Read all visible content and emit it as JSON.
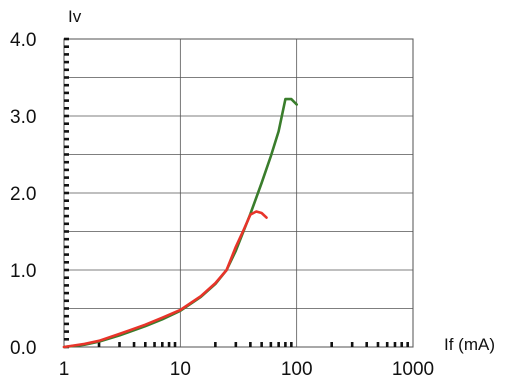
{
  "chart_data": {
    "type": "line",
    "title": "",
    "ylabel": "Iv",
    "xlabel": "If (mA)",
    "xscale": "log",
    "xlim": [
      1,
      1000
    ],
    "ylim": [
      0,
      4.0
    ],
    "grid": true,
    "x_ticks": [
      1,
      10,
      100,
      1000
    ],
    "x_tick_labels": [
      "1",
      "10",
      "100",
      "1000"
    ],
    "y_ticks": [
      0,
      1,
      2,
      3,
      4
    ],
    "y_tick_labels": [
      "0.0",
      "1.0",
      "2.0",
      "3.0",
      "4.0"
    ],
    "series": [
      {
        "color": "#3a7d2c",
        "x": [
          1,
          1.5,
          2,
          3,
          5,
          7,
          10,
          15,
          20,
          25,
          30,
          40,
          50,
          60,
          70,
          80,
          90,
          100
        ],
        "y": [
          0.0,
          0.03,
          0.07,
          0.15,
          0.27,
          0.36,
          0.47,
          0.65,
          0.82,
          1.0,
          1.25,
          1.73,
          2.13,
          2.48,
          2.8,
          3.22,
          3.22,
          3.15
        ]
      },
      {
        "color": "#e8342a",
        "x": [
          1,
          1.5,
          2,
          3,
          5,
          7,
          10,
          15,
          20,
          25,
          30,
          35,
          40,
          45,
          50,
          55
        ],
        "y": [
          0.0,
          0.04,
          0.08,
          0.17,
          0.29,
          0.38,
          0.48,
          0.66,
          0.83,
          1.0,
          1.3,
          1.52,
          1.72,
          1.76,
          1.74,
          1.68
        ]
      }
    ]
  }
}
